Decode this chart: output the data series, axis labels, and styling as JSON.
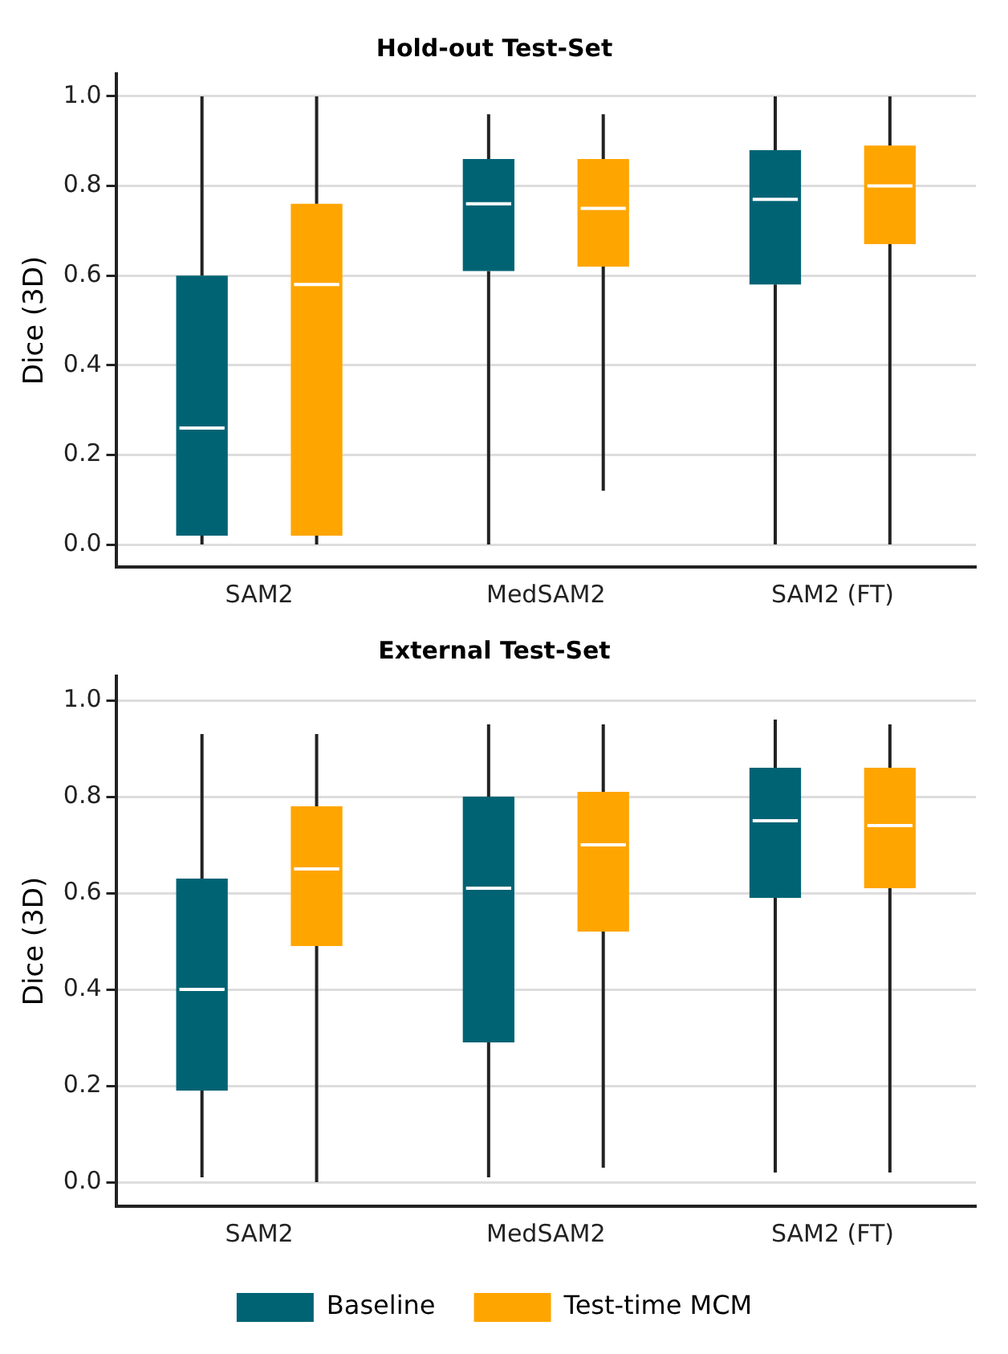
{
  "chart_data": [
    {
      "type": "box",
      "title": "Hold-out Test-Set",
      "ylabel": "Dice (3D)",
      "categories": [
        "SAM2",
        "MedSAM2",
        "SAM2 (FT)"
      ],
      "ylim": [
        -0.05,
        1.05
      ],
      "yticks": [
        {
          "value": 0,
          "label": "0.0"
        },
        {
          "value": 0.2,
          "label": "0.2"
        },
        {
          "value": 0.4,
          "label": "0.4"
        },
        {
          "value": 0.6,
          "label": "0.6"
        },
        {
          "value": 0.8,
          "label": "0.8"
        },
        {
          "value": 1,
          "label": "1.0"
        }
      ],
      "grid": "y",
      "legend": false,
      "series": [
        {
          "color": "#006374",
          "boxes": [
            {
              "low": 0,
              "q1": 0.02,
              "median": 0.26,
              "q3": 0.6,
              "high": 1.0
            },
            {
              "low": 0,
              "q1": 0.61,
              "median": 0.76,
              "q3": 0.86,
              "high": 0.96
            },
            {
              "low": 0,
              "q1": 0.58,
              "median": 0.77,
              "q3": 0.88,
              "high": 1.0
            }
          ]
        },
        {
          "color": "#ffa500",
          "boxes": [
            {
              "low": 0,
              "q1": 0.02,
              "median": 0.58,
              "q3": 0.76,
              "high": 1.0
            },
            {
              "low": 0.12,
              "q1": 0.62,
              "median": 0.75,
              "q3": 0.86,
              "high": 0.96
            },
            {
              "low": 0,
              "q1": 0.67,
              "median": 0.8,
              "q3": 0.89,
              "high": 1.0
            }
          ]
        }
      ]
    },
    {
      "type": "box",
      "title": "External Test-Set",
      "ylabel": "Dice (3D)",
      "categories": [
        "SAM2",
        "MedSAM2",
        "SAM2 (FT)"
      ],
      "ylim": [
        -0.05,
        1.05
      ],
      "yticks": [
        {
          "value": 0,
          "label": "0.0"
        },
        {
          "value": 0.2,
          "label": "0.2"
        },
        {
          "value": 0.4,
          "label": "0.4"
        },
        {
          "value": 0.6,
          "label": "0.6"
        },
        {
          "value": 0.8,
          "label": "0.8"
        },
        {
          "value": 1,
          "label": "1.0"
        }
      ],
      "grid": "y",
      "legend": "bottom",
      "series": [
        {
          "name": "Baseline",
          "color": "#006374",
          "boxes": [
            {
              "low": 0.01,
              "q1": 0.19,
              "median": 0.4,
              "q3": 0.63,
              "high": 0.93
            },
            {
              "low": 0.01,
              "q1": 0.29,
              "median": 0.61,
              "q3": 0.8,
              "high": 0.95
            },
            {
              "low": 0.02,
              "q1": 0.59,
              "median": 0.75,
              "q3": 0.86,
              "high": 0.96
            }
          ]
        },
        {
          "name": "Test-time MCM",
          "color": "#ffa500",
          "boxes": [
            {
              "low": 0,
              "q1": 0.49,
              "median": 0.65,
              "q3": 0.78,
              "high": 0.93
            },
            {
              "low": 0.03,
              "q1": 0.52,
              "median": 0.7,
              "q3": 0.81,
              "high": 0.95
            },
            {
              "low": 0.02,
              "q1": 0.61,
              "median": 0.74,
              "q3": 0.86,
              "high": 0.95
            }
          ]
        }
      ]
    }
  ]
}
